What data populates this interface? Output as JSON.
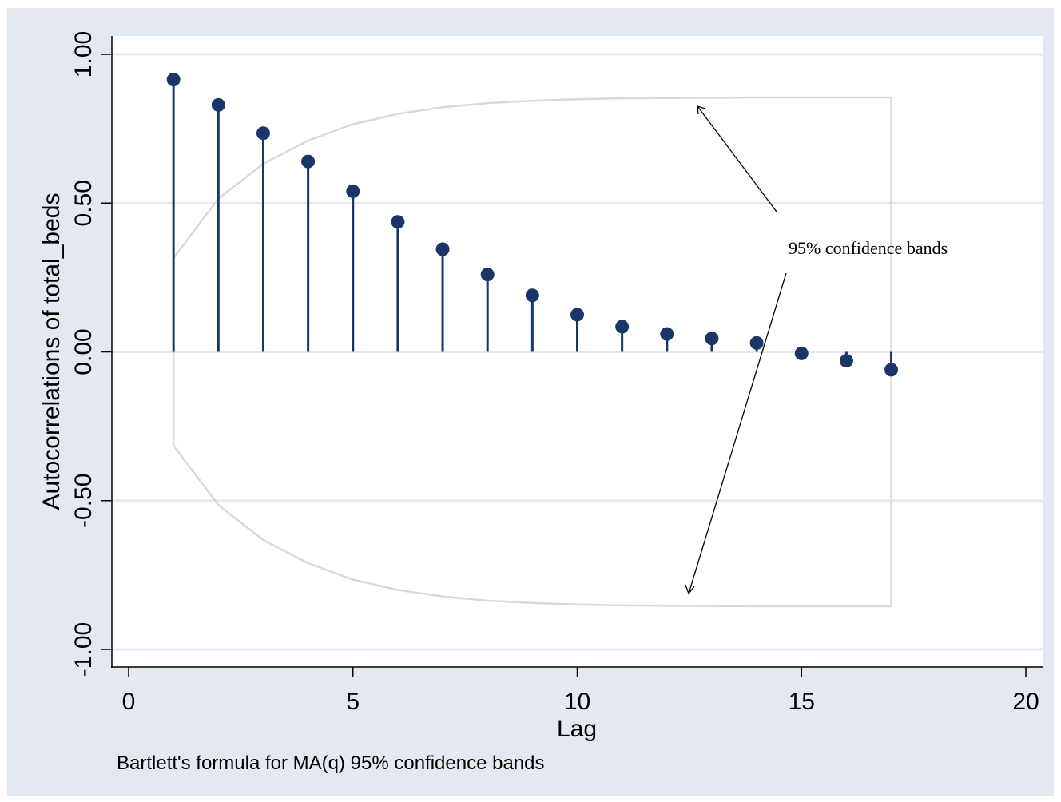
{
  "chart_data": {
    "type": "stem",
    "xlabel": "Lag",
    "ylabel": "Autocorrelations of total_beds",
    "note": "Bartlett's formula for MA(q) 95% confidence bands",
    "annotation": "95% confidence bands",
    "xlim": [
      0,
      20
    ],
    "ylim": [
      -1.0,
      1.0
    ],
    "x_ticks": [
      0,
      5,
      10,
      15,
      20
    ],
    "x_tick_labels": [
      "0",
      "5",
      "10",
      "15",
      "20"
    ],
    "y_ticks": [
      -1.0,
      -0.5,
      0.0,
      0.5,
      1.0
    ],
    "y_tick_labels": [
      "-1.00",
      "-0.50",
      "0.00",
      "0.50",
      "1.00"
    ],
    "grid": true,
    "series": [
      {
        "lags": [
          1,
          2,
          3,
          4,
          5,
          6,
          7,
          8,
          9,
          10,
          11,
          12,
          13,
          14,
          15,
          16,
          17
        ],
        "values": [
          0.915,
          0.83,
          0.735,
          0.64,
          0.54,
          0.437,
          0.345,
          0.26,
          0.19,
          0.125,
          0.085,
          0.06,
          0.045,
          0.03,
          -0.005,
          -0.03,
          -0.06
        ]
      }
    ],
    "confidence_band": {
      "lags": [
        1,
        2,
        3,
        4,
        5,
        6,
        7,
        8,
        9,
        10,
        11,
        12,
        13,
        14,
        15,
        16,
        17
      ],
      "upper": [
        0.315,
        0.515,
        0.632,
        0.71,
        0.765,
        0.8,
        0.822,
        0.836,
        0.844,
        0.849,
        0.852,
        0.853,
        0.854,
        0.855,
        0.855,
        0.855,
        0.855
      ]
    }
  },
  "colors": {
    "page_background": "#e3e8f1",
    "plot_background": "#ffffff",
    "gridline": "#e3e8f1",
    "marker": "#1a3668",
    "band": "#d9d9d9",
    "axis": "#000000"
  }
}
